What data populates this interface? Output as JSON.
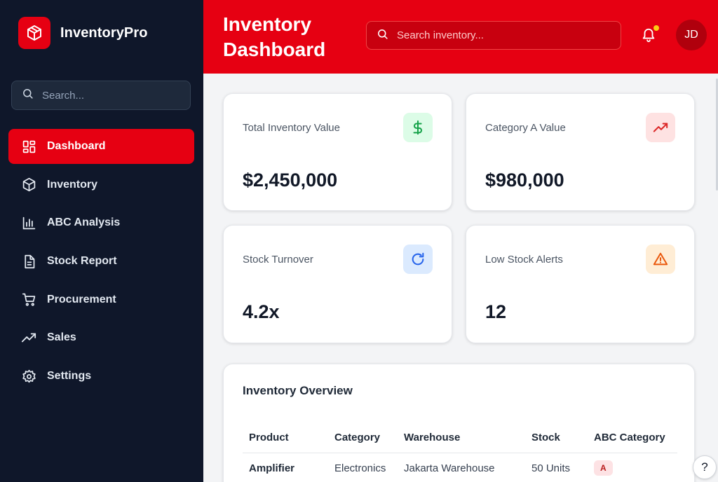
{
  "brand": {
    "name": "InventoryPro",
    "icon": "cube-icon",
    "color": "#e60012"
  },
  "sidebar": {
    "search_placeholder": "Search...",
    "items": [
      {
        "label": "Dashboard",
        "icon": "grid-icon",
        "active": true
      },
      {
        "label": "Inventory",
        "icon": "cube-icon"
      },
      {
        "label": "ABC Analysis",
        "icon": "bar-chart-icon"
      },
      {
        "label": "Stock Report",
        "icon": "document-icon"
      },
      {
        "label": "Procurement",
        "icon": "cart-icon"
      },
      {
        "label": "Sales",
        "icon": "trending-up-icon"
      },
      {
        "label": "Settings",
        "icon": "gear-icon"
      }
    ]
  },
  "header": {
    "title": "Inventory Dashboard",
    "search_placeholder": "Search inventory...",
    "avatar_initials": "JD",
    "notification_dot_color": "#facc15"
  },
  "stats": [
    {
      "label": "Total Inventory Value",
      "value": "$2,450,000",
      "icon": "dollar-icon",
      "icon_bg": "#dcfce7",
      "icon_color": "#16a34a"
    },
    {
      "label": "Category A Value",
      "value": "$980,000",
      "icon": "trending-up-icon",
      "icon_bg": "#fee2e2",
      "icon_color": "#dc2626"
    },
    {
      "label": "Stock Turnover",
      "value": "4.2x",
      "icon": "refresh-icon",
      "icon_bg": "#dbeafe",
      "icon_color": "#2563eb"
    },
    {
      "label": "Low Stock Alerts",
      "value": "12",
      "icon": "warning-icon",
      "icon_bg": "#ffedd5",
      "icon_color": "#ea580c"
    }
  ],
  "overview": {
    "title": "Inventory Overview",
    "columns": [
      "Product",
      "Category",
      "Warehouse",
      "Stock",
      "ABC Category"
    ],
    "rows": [
      {
        "product": "Amplifier",
        "category": "Electronics",
        "warehouse": "Jakarta Warehouse",
        "stock": "50 Units",
        "abc": "A"
      }
    ]
  },
  "help": {
    "label": "?"
  }
}
